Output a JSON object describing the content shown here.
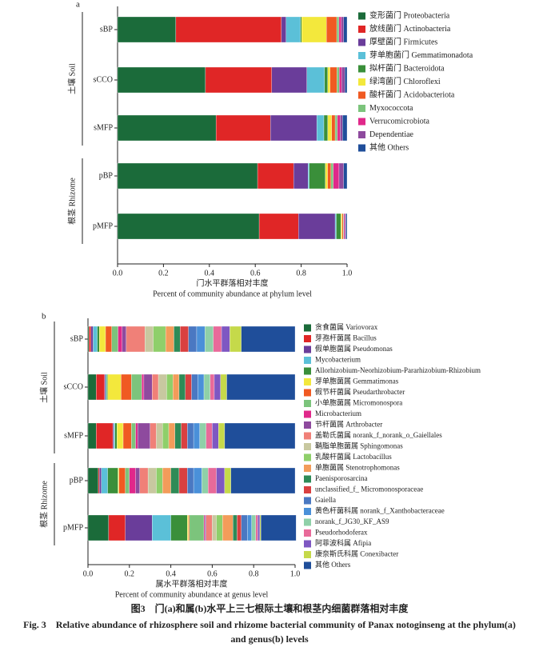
{
  "chart_data": [
    {
      "type": "bar",
      "orientation": "horizontal",
      "stacked": true,
      "panel": "a",
      "categories": [
        "sBP",
        "sCCO",
        "sMFP",
        "pBP",
        "pMFP"
      ],
      "groups": [
        {
          "label": "土壤 Soil",
          "from": 0,
          "to": 2
        },
        {
          "label": "根茎 Rhizome",
          "from": 3,
          "to": 4
        }
      ],
      "xlabel": "门水平群落相对丰度",
      "xlabel_en": "Percent of community abundance at phylum level",
      "xlim": [
        0,
        1
      ],
      "xticks": [
        {
          "value": 0,
          "label": "0.0"
        },
        0.2,
        0.4,
        0.6,
        0.8,
        {
          "value": 1,
          "label": "1.0"
        }
      ],
      "series": [
        {
          "name": "变形菌门 Proteobacteria",
          "color": "#1b6b3a",
          "values": [
            0.254,
            0.383,
            0.429,
            0.61,
            0.617
          ]
        },
        {
          "name": "放线菌门 Actinobacteria",
          "color": "#e02626",
          "values": [
            0.46,
            0.289,
            0.237,
            0.157,
            0.171
          ]
        },
        {
          "name": "厚壁菌门 Firmicutes",
          "color": "#6a3d9a",
          "values": [
            0.02,
            0.153,
            0.202,
            0.063,
            0.16
          ]
        },
        {
          "name": "芽单胞菌门 Gemmatimonadota",
          "color": "#5bc0d8",
          "values": [
            0.063,
            0.077,
            0.031,
            0.005,
            0.005
          ]
        },
        {
          "name": "拟杆菌门 Bacteroidota",
          "color": "#3a8f3a",
          "values": [
            0.005,
            0.014,
            0.017,
            0.07,
            0.02
          ]
        },
        {
          "name": "绿湾菌门 Chloroflexi",
          "color": "#f3e83c",
          "values": [
            0.108,
            0.01,
            0.017,
            0.01,
            0.005
          ]
        },
        {
          "name": "酸杆菌门 Acidobacteriota",
          "color": "#f05a22",
          "values": [
            0.045,
            0.03,
            0.015,
            0.015,
            0.005
          ]
        },
        {
          "name": "Myxococcota",
          "color": "#7cc47c",
          "values": [
            0.01,
            0.01,
            0.01,
            0.01,
            0.003
          ]
        },
        {
          "name": "Verrucomicrobiota",
          "color": "#e0288a",
          "values": [
            0.01,
            0.01,
            0.012,
            0.025,
            0.004
          ]
        },
        {
          "name": "Dependentiae",
          "color": "#8e4a9e",
          "values": [
            0.01,
            0.014,
            0.01,
            0.02,
            0.005
          ]
        },
        {
          "name": "其他 Others",
          "color": "#1f4e9a",
          "values": [
            0.015,
            0.01,
            0.02,
            0.015,
            0.005
          ]
        }
      ]
    },
    {
      "type": "bar",
      "orientation": "horizontal",
      "stacked": true,
      "panel": "b",
      "categories": [
        "sBP",
        "sCCO",
        "sMFP",
        "pBP",
        "pMFP"
      ],
      "groups": [
        {
          "label": "土壤 Soil",
          "from": 0,
          "to": 2
        },
        {
          "label": "根茎 Rhizome",
          "from": 3,
          "to": 4
        }
      ],
      "xlabel": "属水平群落相对丰度",
      "xlabel_en": "Percent of community abundance at genus level",
      "xlim": [
        0,
        1
      ],
      "xticks": [
        {
          "value": 0,
          "label": "0.0"
        },
        0.2,
        0.4,
        0.6,
        0.8,
        {
          "value": 1,
          "label": "1.0"
        }
      ],
      "series": [
        {
          "name": "贪食菌属 Variovorax",
          "color": "#1b6b3a",
          "values": [
            0.005,
            0.04,
            0.04,
            0.05,
            0.1
          ]
        },
        {
          "name": "芽孢杆菌属 Bacillus",
          "color": "#e02626",
          "values": [
            0.01,
            0.04,
            0.08,
            0.005,
            0.08
          ]
        },
        {
          "name": "假单胞菌属 Pseudomonas",
          "color": "#6a3d9a",
          "values": [
            0.01,
            0.005,
            0.005,
            0.01,
            0.13
          ]
        },
        {
          "name": "Mycobacterium",
          "color": "#5bc0d8",
          "values": [
            0.02,
            0.005,
            0.005,
            0.03,
            0.09
          ]
        },
        {
          "name": "Allorhizobium-Neorhizobium-Pararhizobium-Rhizobium",
          "color": "#3a8f3a",
          "values": [
            0.01,
            0.005,
            0.01,
            0.05,
            0.08
          ]
        },
        {
          "name": "芽单胞菌属 Gemmatimonas",
          "color": "#f3e83c",
          "values": [
            0.03,
            0.065,
            0.03,
            0.005,
            0.005
          ]
        },
        {
          "name": "假节杆菌属 Pseudarthrobacter",
          "color": "#f05a22",
          "values": [
            0.03,
            0.05,
            0.04,
            0.03,
            0.005
          ]
        },
        {
          "name": "小单胞菌属 Micromonospora",
          "color": "#7cc47c",
          "values": [
            0.03,
            0.05,
            0.02,
            0.02,
            0.07
          ]
        },
        {
          "name": "Microbacterium",
          "color": "#e0288a",
          "values": [
            0.02,
            0.01,
            0.01,
            0.03,
            0.005
          ]
        },
        {
          "name": "节杆菌属 Arthrobacter",
          "color": "#8e4a9e",
          "values": [
            0.02,
            0.04,
            0.06,
            0.02,
            0.005
          ]
        },
        {
          "name": "盖勒氏菌属 norank_f_norank_o_Gaiellales",
          "color": "#f08078",
          "values": [
            0.09,
            0.03,
            0.03,
            0.04,
            0.03
          ]
        },
        {
          "name": "鞘脂单胞菌属 Sphingomonas",
          "color": "#c8c8a0",
          "values": [
            0.04,
            0.04,
            0.03,
            0.04,
            0.02
          ]
        },
        {
          "name": "乳酸杆菌属 Lactobacillus",
          "color": "#8fcf6a",
          "values": [
            0.06,
            0.03,
            0.03,
            0.03,
            0.03
          ]
        },
        {
          "name": "单胞菌属 Stenotrophomonas",
          "color": "#f39c5a",
          "values": [
            0.04,
            0.03,
            0.03,
            0.04,
            0.05
          ]
        },
        {
          "name": "Paenisporosarcina",
          "color": "#2e8b57",
          "values": [
            0.03,
            0.03,
            0.03,
            0.04,
            0.02
          ]
        },
        {
          "name": "unclassified_f_ Micromonosporaceae",
          "color": "#d94040",
          "values": [
            0.04,
            0.03,
            0.03,
            0.04,
            0.02
          ]
        },
        {
          "name": "Gaiella",
          "color": "#4a78c2",
          "values": [
            0.04,
            0.03,
            0.03,
            0.03,
            0.03
          ]
        },
        {
          "name": "黄色杆菌科属 norank_f_Xanthobacteraceae",
          "color": "#4a90d9",
          "values": [
            0.04,
            0.03,
            0.03,
            0.04,
            0.02
          ]
        },
        {
          "name": "norank_f_JG30_KF_AS9",
          "color": "#8fd0a8",
          "values": [
            0.04,
            0.03,
            0.03,
            0.03,
            0.02
          ]
        },
        {
          "name": "Pseudorhodoferax",
          "color": "#e86a9a",
          "values": [
            0.04,
            0.02,
            0.03,
            0.04,
            0.01
          ]
        },
        {
          "name": "阿菲波科属 Afipia",
          "color": "#7e57c2",
          "values": [
            0.04,
            0.03,
            0.03,
            0.04,
            0.01
          ]
        },
        {
          "name": "康奈斯氏科属 Conexibacter",
          "color": "#c5d94a",
          "values": [
            0.055,
            0.03,
            0.03,
            0.03,
            0.005
          ]
        },
        {
          "name": "其他 Others",
          "color": "#1f4e9a",
          "values": [
            0.26,
            0.33,
            0.34,
            0.31,
            0.17
          ]
        }
      ]
    }
  ],
  "caption": {
    "zh": "图3　门(a)和属(b)水平上三七根际土壤和根茎内细菌群落相对丰度",
    "en": "Fig. 3　Relative abundance of rhizosphere soil and rhizome bacterial community of Panax notoginseng at the phylum(a) and genus(b) levels"
  }
}
